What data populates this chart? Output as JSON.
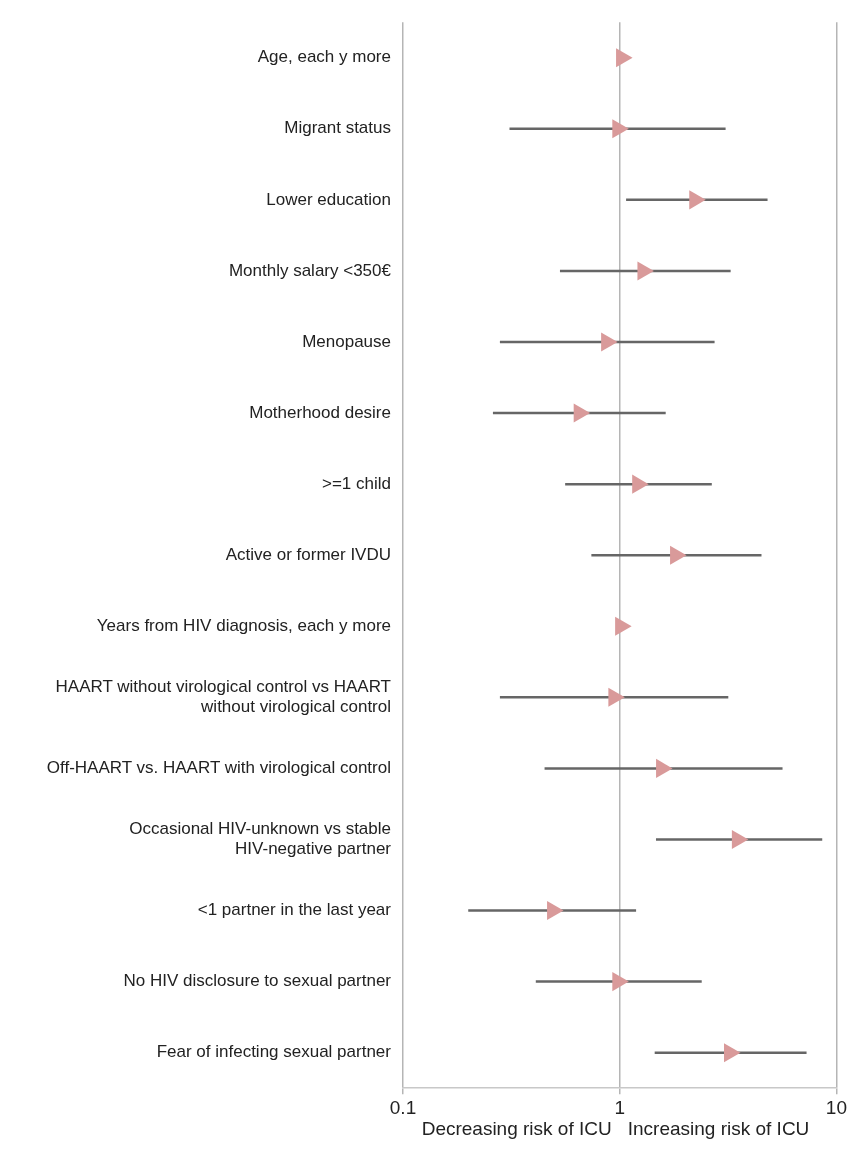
{
  "chart_data": {
    "type": "scatter",
    "orientation": "horizontal",
    "log": "x",
    "grid": "x",
    "marker": "triangle",
    "legend": false,
    "categories": [
      "Age, each y more",
      "Migrant status",
      "Lower education",
      "Monthly salary <350€",
      "Menopause",
      "Motherhood desire",
      ">=1 child",
      "Active or former IVDU",
      "Years from HIV diagnosis, each y more",
      "HAART without virological control vs HAART without virological control",
      "Off-HAART vs. HAART with virological control",
      "Occasional HIV-unknown vs stable HIV-negative partner",
      "<1 partner in the last year",
      "No HIV disclosure to sexual partner",
      "Fear of infecting sexual partner"
    ],
    "series": [
      {
        "color": "#d99a9a",
        "values": [
          1.02,
          0.98,
          2.22,
          1.28,
          0.87,
          0.65,
          1.21,
          1.81,
          1.01,
          0.94,
          1.56,
          3.49,
          0.49,
          0.98,
          3.21
        ],
        "errors": [
          null,
          [
            0.31,
            3.08
          ],
          [
            1.07,
            4.81
          ],
          [
            0.53,
            3.25
          ],
          [
            0.28,
            2.74
          ],
          [
            0.26,
            1.63
          ],
          [
            0.56,
            2.66
          ],
          [
            0.74,
            4.51
          ],
          null,
          [
            0.28,
            3.17
          ],
          [
            0.45,
            5.64
          ],
          [
            1.47,
            8.6
          ],
          [
            0.2,
            1.19
          ],
          [
            0.41,
            2.39
          ],
          [
            1.45,
            7.28
          ]
        ]
      }
    ],
    "xlim": [
      0.1,
      10
    ],
    "xticks": [
      0.1,
      1,
      10
    ],
    "annotations": [
      "Decreasing risk of ICU",
      "Increasing risk of ICU"
    ]
  }
}
